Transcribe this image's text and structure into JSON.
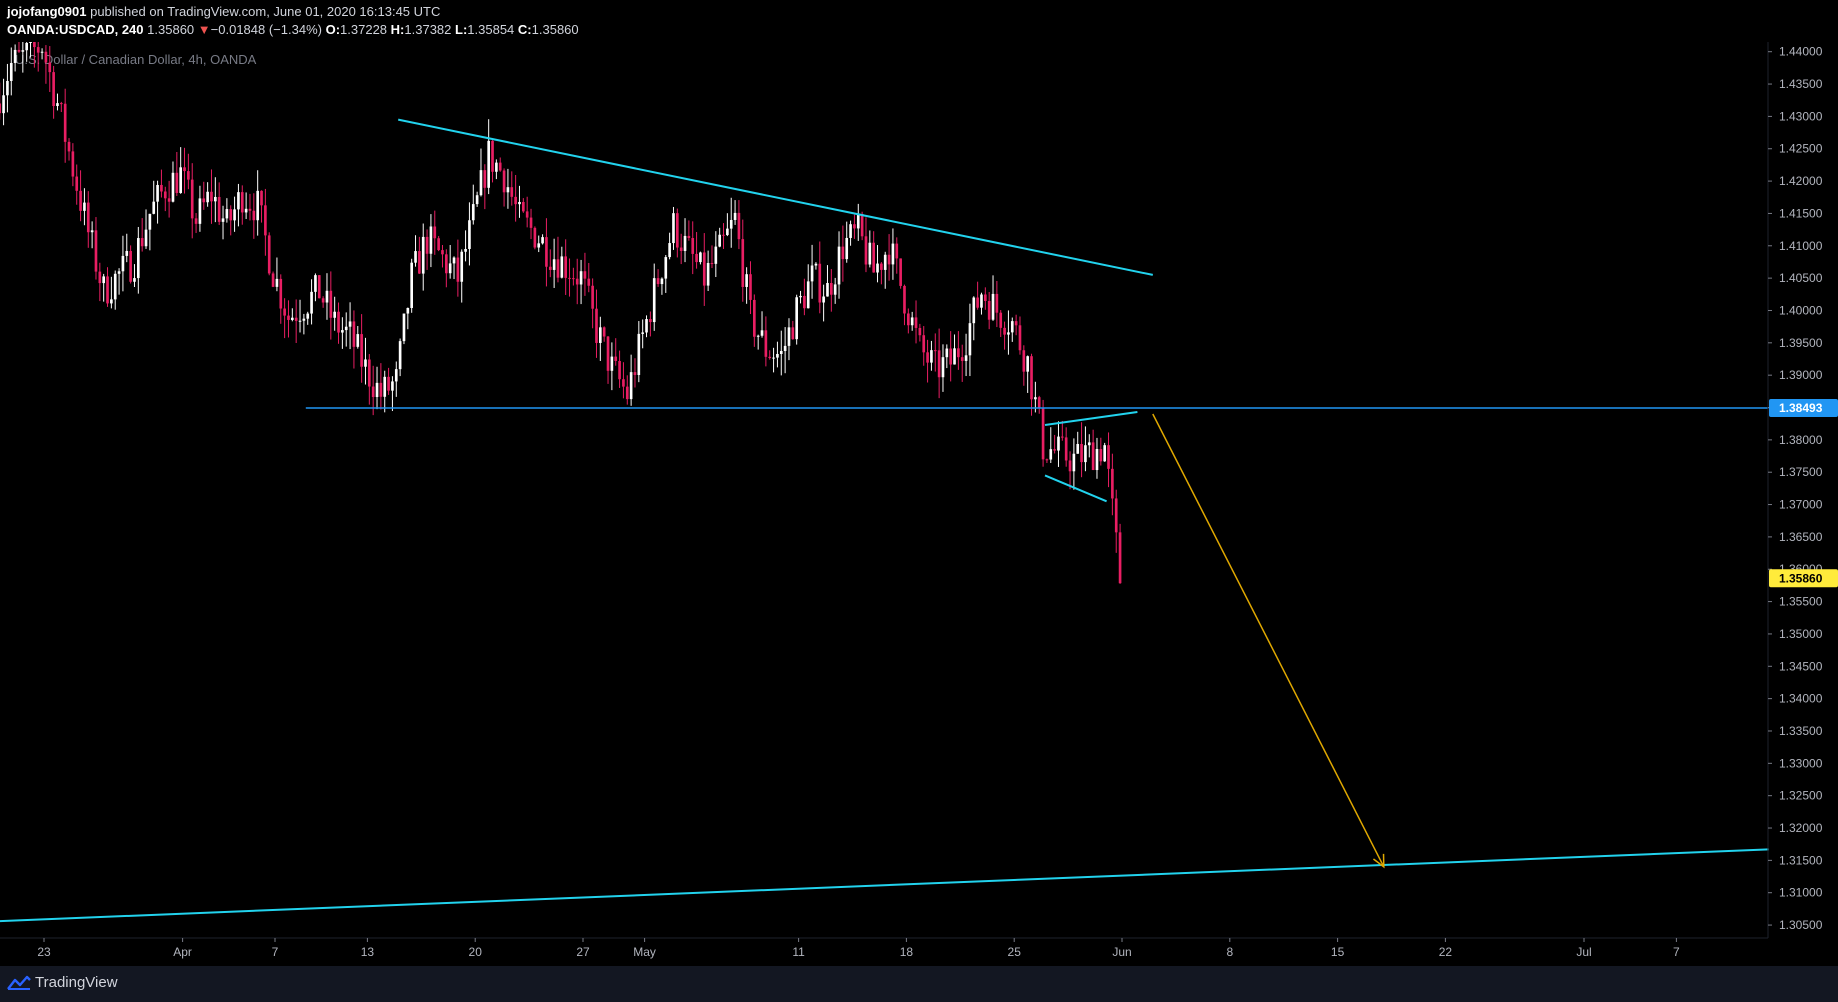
{
  "header": {
    "author": "jojofang0901",
    "published": "published on TradingView.com, June 01, 2020 16:13:45 UTC",
    "symbol": "OANDA:USDCAD, 240",
    "last": "1.35860",
    "change_arrow": "▼",
    "change": "−0.01848 (−1.34%)",
    "o_label": "O:",
    "o": "1.37228",
    "h_label": "H:",
    "h": "1.37382",
    "l_label": "L:",
    "l": "1.35854",
    "c_label": "C:",
    "c": "1.35860"
  },
  "footer": {
    "brand": "TradingView",
    "brand_icon": "tradingview-logo-icon"
  },
  "colors": {
    "up": "#ffffff",
    "down": "#e91e63",
    "trendline": "#22d3ee",
    "support": "#2196f3",
    "arrow": "#e0a800",
    "price_tag": "#ffeb3b",
    "level_tag": "#2196f3"
  },
  "chart_data": {
    "type": "candlestick",
    "title": "U.S. Dollar / Canadian Dollar, 4h, OANDA",
    "ylim": [
      1.303,
      1.4415
    ],
    "y_ticks": [
      "1.44000",
      "1.43500",
      "1.43000",
      "1.42500",
      "1.42000",
      "1.41500",
      "1.41000",
      "1.40500",
      "1.40000",
      "1.39500",
      "1.39000",
      "1.38500",
      "1.38000",
      "1.37500",
      "1.37000",
      "1.36500",
      "1.36000",
      "1.35500",
      "1.35000",
      "1.34500",
      "1.34000",
      "1.33500",
      "1.33000",
      "1.32500",
      "1.32000",
      "1.31500",
      "1.31000",
      "1.30500"
    ],
    "x_ticks": [
      {
        "label": "23",
        "date": "2020-03-23"
      },
      {
        "label": "Apr",
        "date": "2020-04-01"
      },
      {
        "label": "7",
        "date": "2020-04-07"
      },
      {
        "label": "13",
        "date": "2020-04-13"
      },
      {
        "label": "20",
        "date": "2020-04-20"
      },
      {
        "label": "27",
        "date": "2020-04-27"
      },
      {
        "label": "May",
        "date": "2020-05-01"
      },
      {
        "label": "11",
        "date": "2020-05-11"
      },
      {
        "label": "18",
        "date": "2020-05-18"
      },
      {
        "label": "25",
        "date": "2020-05-25"
      },
      {
        "label": "Jun",
        "date": "2020-06-01"
      },
      {
        "label": "8",
        "date": "2020-06-08"
      },
      {
        "label": "15",
        "date": "2020-06-15"
      },
      {
        "label": "22",
        "date": "2020-06-22"
      },
      {
        "label": "Jul",
        "date": "2020-07-01"
      },
      {
        "label": "7",
        "date": "2020-07-07"
      }
    ],
    "price_path": [
      [
        "2020-03-20",
        1.432
      ],
      [
        "2020-03-21",
        1.438
      ],
      [
        "2020-03-23",
        1.441
      ],
      [
        "2020-03-24",
        1.432
      ],
      [
        "2020-03-25",
        1.422
      ],
      [
        "2020-03-26",
        1.412
      ],
      [
        "2020-03-27",
        1.403
      ],
      [
        "2020-03-29",
        1.408
      ],
      [
        "2020-03-30",
        1.415
      ],
      [
        "2020-03-31",
        1.419
      ],
      [
        "2020-04-01",
        1.421
      ],
      [
        "2020-04-02",
        1.414
      ],
      [
        "2020-04-03",
        1.418
      ],
      [
        "2020-04-04",
        1.413
      ],
      [
        "2020-04-05",
        1.418
      ],
      [
        "2020-04-06",
        1.416
      ],
      [
        "2020-04-07",
        1.406
      ],
      [
        "2020-04-08",
        1.399
      ],
      [
        "2020-04-09",
        1.401
      ],
      [
        "2020-04-10",
        1.403
      ],
      [
        "2020-04-11",
        1.398
      ],
      [
        "2020-04-12",
        1.396
      ],
      [
        "2020-04-13",
        1.391
      ],
      [
        "2020-04-14",
        1.387
      ],
      [
        "2020-04-15",
        1.389
      ],
      [
        "2020-04-16",
        1.405
      ],
      [
        "2020-04-17",
        1.411
      ],
      [
        "2020-04-18",
        1.408
      ],
      [
        "2020-04-19",
        1.405
      ],
      [
        "2020-04-20",
        1.414
      ],
      [
        "2020-04-21",
        1.424
      ],
      [
        "2020-04-22",
        1.421
      ],
      [
        "2020-04-23",
        1.414
      ],
      [
        "2020-04-24",
        1.412
      ],
      [
        "2020-04-25",
        1.409
      ],
      [
        "2020-04-26",
        1.407
      ],
      [
        "2020-04-27",
        1.405
      ],
      [
        "2020-04-28",
        1.397
      ],
      [
        "2020-04-29",
        1.391
      ],
      [
        "2020-04-30",
        1.387
      ],
      [
        "2020-05-01",
        1.396
      ],
      [
        "2020-05-02",
        1.405
      ],
      [
        "2020-05-03",
        1.413
      ],
      [
        "2020-05-04",
        1.409
      ],
      [
        "2020-05-05",
        1.405
      ],
      [
        "2020-05-06",
        1.409
      ],
      [
        "2020-05-07",
        1.414
      ],
      [
        "2020-05-08",
        1.399
      ],
      [
        "2020-05-09",
        1.394
      ],
      [
        "2020-05-10",
        1.393
      ],
      [
        "2020-05-11",
        1.4
      ],
      [
        "2020-05-12",
        1.405
      ],
      [
        "2020-05-13",
        1.403
      ],
      [
        "2020-05-14",
        1.41
      ],
      [
        "2020-05-15",
        1.412
      ],
      [
        "2020-05-16",
        1.406
      ],
      [
        "2020-05-17",
        1.41
      ],
      [
        "2020-05-18",
        1.402
      ],
      [
        "2020-05-19",
        1.394
      ],
      [
        "2020-05-20",
        1.391
      ],
      [
        "2020-05-21",
        1.392
      ],
      [
        "2020-05-22",
        1.396
      ],
      [
        "2020-05-23",
        1.403
      ],
      [
        "2020-05-24",
        1.4
      ],
      [
        "2020-05-25",
        1.398
      ],
      [
        "2020-05-26",
        1.392
      ],
      [
        "2020-05-27",
        1.379
      ],
      [
        "2020-05-28",
        1.378
      ],
      [
        "2020-05-29",
        1.377
      ],
      [
        "2020-05-30",
        1.378
      ],
      [
        "2020-05-31",
        1.379
      ],
      [
        "2020-06-01",
        1.3586
      ]
    ],
    "drawings": {
      "descending_trendline": [
        [
          "2020-04-15",
          1.4295
        ],
        [
          "2020-06-03",
          1.4055
        ]
      ],
      "horizontal_support": [
        [
          "2020-04-09",
          1.38493
        ],
        [
          "2020-07-13",
          1.38493
        ]
      ],
      "flag_upper": [
        [
          "2020-05-27",
          1.3823
        ],
        [
          "2020-06-02",
          1.3843
        ]
      ],
      "flag_lower": [
        [
          "2020-05-27",
          1.3745
        ],
        [
          "2020-05-31",
          1.3705
        ]
      ],
      "rising_support": [
        [
          "2020-03-19",
          1.3055
        ],
        [
          "2020-07-13",
          1.3167
        ]
      ],
      "target_arrow": [
        [
          "2020-06-03",
          1.384
        ],
        [
          "2020-06-18",
          1.314
        ]
      ]
    },
    "price_labels": [
      {
        "value": 1.38493,
        "text": "1.38493",
        "kind": "level"
      },
      {
        "value": 1.3586,
        "text": "1.35860",
        "kind": "last"
      }
    ]
  }
}
